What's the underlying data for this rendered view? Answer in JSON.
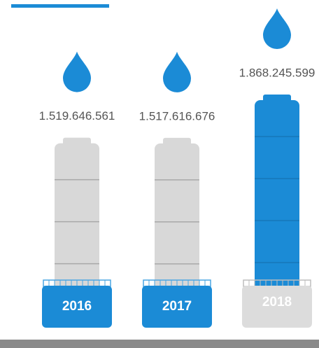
{
  "chart_data": {
    "type": "bar",
    "categories": [
      "2016",
      "2017",
      "2018"
    ],
    "values": [
      1519646561,
      1517616676,
      1868245599
    ],
    "value_labels": [
      "1.519.646.561",
      "1.517.616.676",
      "1.868.245.599"
    ],
    "colors": [
      "#d8d8d8",
      "#d8d8d8",
      "#1b8bd6"
    ],
    "label_box_colors": [
      "#1b8bd6",
      "#1b8bd6",
      "#dcdcdc"
    ]
  }
}
